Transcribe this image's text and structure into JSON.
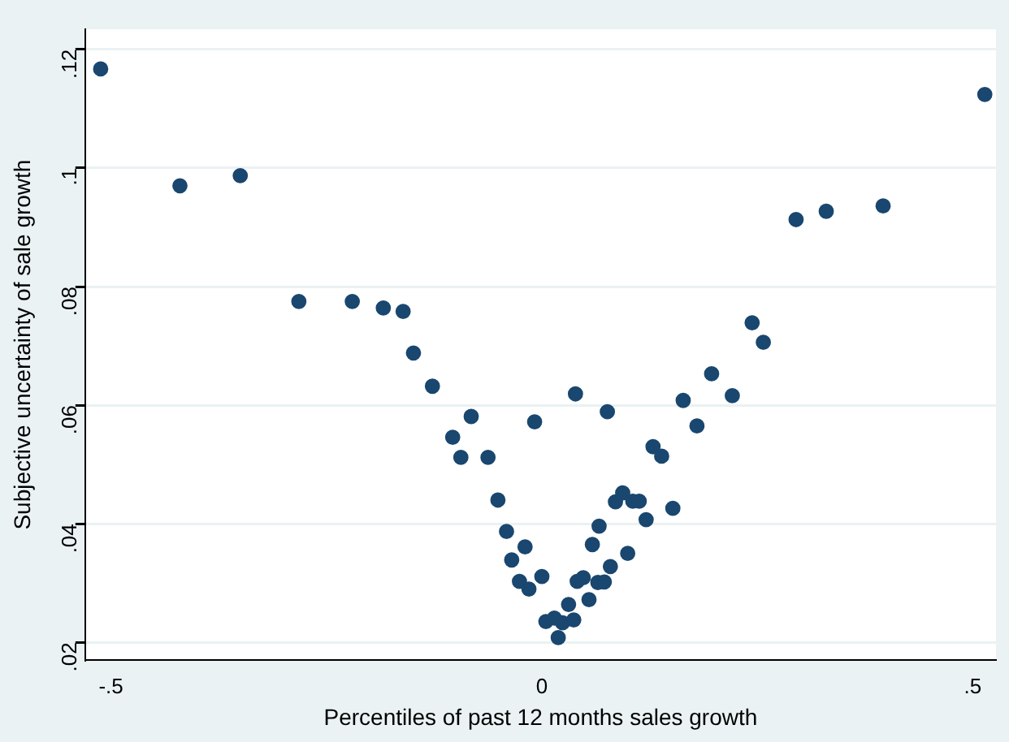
{
  "chart_data": {
    "type": "scatter",
    "xlabel": "Percentiles of past 12 months sales growth",
    "ylabel": "Subjective uncertainty of sale growth",
    "x": [
      -0.512,
      -0.42,
      -0.35,
      -0.282,
      -0.22,
      -0.184,
      -0.161,
      -0.149,
      -0.127,
      -0.1035,
      -0.082,
      -0.094,
      -0.0625,
      -0.0084,
      0.039,
      0.076,
      -0.051,
      -0.041,
      -0.0195,
      -0.035,
      -0.026,
      -0.015,
      0,
      0.0047,
      0.0145,
      0.019,
      0.024,
      0.031,
      0.037,
      0.041,
      0.048,
      0.0547,
      0.0586,
      0.0664,
      0.065,
      0.0725,
      0.0795,
      0.0996,
      0.0854,
      0.0938,
      0.1055,
      0.113,
      0.121,
      0.129,
      0.139,
      0.152,
      0.164,
      0.18,
      0.197,
      0.221,
      0.244,
      0.257,
      0.295,
      0.33,
      0.396,
      0.514
    ],
    "values": [
      0.1167,
      0.097,
      0.0987,
      0.0775,
      0.0775,
      0.0764,
      0.0758,
      0.0688,
      0.0632,
      0.0546,
      0.0581,
      0.0512,
      0.0512,
      0.0572,
      0.0619,
      0.0589,
      0.044,
      0.0387,
      0.0361,
      0.0339,
      0.0303,
      0.029,
      0.0311,
      0.0235,
      0.0241,
      0.0208,
      0.0233,
      0.0264,
      0.0238,
      0.0303,
      0.0309,
      0.0272,
      0.0365,
      0.0396,
      0.0301,
      0.0302,
      0.0328,
      0.035,
      0.0437,
      0.0452,
      0.0438,
      0.0438,
      0.0407,
      0.053,
      0.0514,
      0.0426,
      0.0608,
      0.0565,
      0.0653,
      0.0616,
      0.0739,
      0.0706,
      0.0913,
      0.0927,
      0.0936,
      0.1124
    ],
    "color": "#1a476f",
    "marker": "circle",
    "xlim": [
      -0.53,
      0.527
    ],
    "ylim": [
      0.017,
      0.1234
    ],
    "xticks": [
      {
        "value": -0.5,
        "label": "-.5"
      },
      {
        "value": 0,
        "label": "0"
      },
      {
        "value": 0.5,
        "label": ".5"
      }
    ],
    "yticks": [
      {
        "value": 0.02,
        "label": ".02"
      },
      {
        "value": 0.04,
        "label": ".04"
      },
      {
        "value": 0.06,
        "label": ".06"
      },
      {
        "value": 0.08,
        "label": ".08"
      },
      {
        "value": 0.1,
        "label": ".1"
      },
      {
        "value": 0.12,
        "label": ".12"
      }
    ],
    "grid": "y",
    "legend": false
  }
}
